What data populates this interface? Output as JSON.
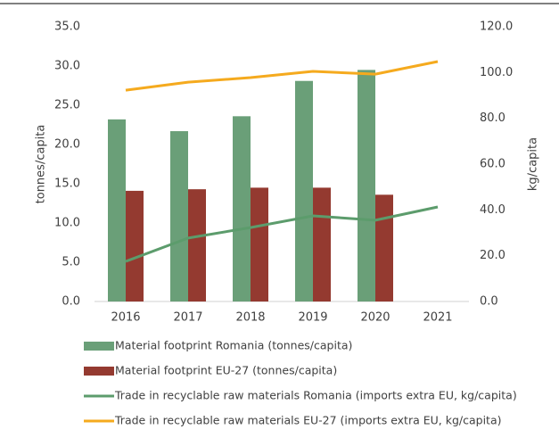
{
  "chart_data": {
    "type": "bar",
    "categories": [
      "2016",
      "2017",
      "2018",
      "2019",
      "2020",
      "2021"
    ],
    "ylabel": "tonnes/capita",
    "y2label": "kg/capita",
    "ylim": [
      0,
      35
    ],
    "yticks": [
      {
        "value": 0,
        "label": "0.0"
      },
      {
        "value": 5,
        "label": "5.0"
      },
      {
        "value": 10,
        "label": "10.0"
      },
      {
        "value": 15,
        "label": "15.0"
      },
      {
        "value": 20,
        "label": "20.0"
      },
      {
        "value": 25,
        "label": "25.0"
      },
      {
        "value": 30,
        "label": "30.0"
      },
      {
        "value": 35,
        "label": "35.0"
      }
    ],
    "y2lim": [
      0,
      120
    ],
    "y2ticks": [
      {
        "value": 0,
        "label": "0.0"
      },
      {
        "value": 20,
        "label": "20.0"
      },
      {
        "value": 40,
        "label": "40.0"
      },
      {
        "value": 60,
        "label": "60.0"
      },
      {
        "value": 80,
        "label": "80.0"
      },
      {
        "value": 100,
        "label": "100.0"
      },
      {
        "value": 120,
        "label": "120.0"
      }
    ],
    "series": [
      {
        "name": "Material footprint Romania (tonnes/capita)",
        "type": "bar",
        "color": "#6a9f78",
        "values": [
          23.2,
          21.7,
          23.6,
          28.1,
          29.5,
          null
        ]
      },
      {
        "name": "Material footprint EU-27 (tonnes/capita)",
        "type": "bar",
        "color": "#943a30",
        "values": [
          14.1,
          14.3,
          14.5,
          14.5,
          13.6,
          null
        ]
      },
      {
        "name": "Trade in recyclable raw materials Romania (imports extra EU, kg/capita)",
        "type": "line",
        "axis": "y2",
        "color": "#5c9c6c",
        "values": [
          17.5,
          27.7,
          32.3,
          37.4,
          35.5,
          41.3
        ]
      },
      {
        "name": "Trade in recyclable raw materials EU-27 (imports extra EU, kg/capita)",
        "type": "line",
        "axis": "y2",
        "color": "#f5aa1e",
        "values": [
          92.3,
          95.8,
          97.8,
          100.5,
          99.3,
          104.8
        ]
      }
    ]
  }
}
